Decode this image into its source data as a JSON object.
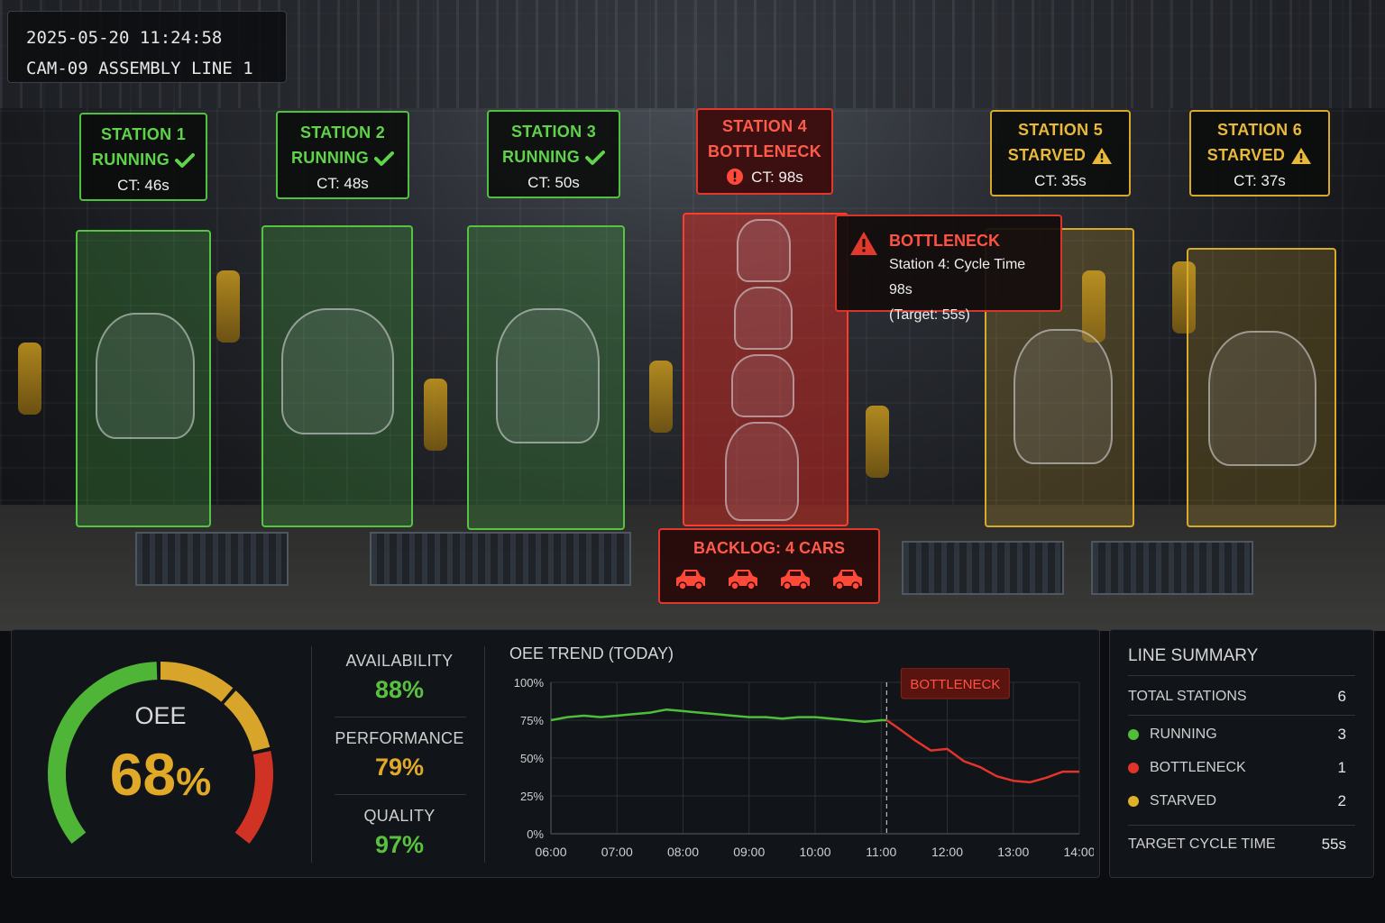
{
  "camera": {
    "timestamp": "2025-05-20  11:24:58",
    "label": "CAM-09  ASSEMBLY LINE 1"
  },
  "stations": [
    {
      "name": "STATION 1",
      "state": "RUNNING",
      "ct": "CT: 46s",
      "status": "running"
    },
    {
      "name": "STATION 2",
      "state": "RUNNING",
      "ct": "CT: 48s",
      "status": "running"
    },
    {
      "name": "STATION 3",
      "state": "RUNNING",
      "ct": "CT: 50s",
      "status": "running"
    },
    {
      "name": "STATION 4",
      "state": "BOTTLENECK",
      "ct": "CT: 98s",
      "status": "bottleneck"
    },
    {
      "name": "STATION 5",
      "state": "STARVED",
      "ct": "CT: 35s",
      "status": "starved"
    },
    {
      "name": "STATION 6",
      "state": "STARVED",
      "ct": "CT: 37s",
      "status": "starved"
    }
  ],
  "alert": {
    "title": "BOTTLENECK",
    "line1": "Station 4: Cycle Time 98s",
    "line2": "(Target: 55s)"
  },
  "backlog": {
    "label": "BACKLOG: 4 CARS",
    "count": 4
  },
  "oee": {
    "label": "OEE",
    "value": "68",
    "unit": "%",
    "gauge_fraction": 0.68
  },
  "metrics": [
    {
      "label": "AVAILABILITY",
      "value": "88%",
      "color": "#58c23f"
    },
    {
      "label": "PERFORMANCE",
      "value": "79%",
      "color": "#e0a928"
    },
    {
      "label": "QUALITY",
      "value": "97%",
      "color": "#58c23f"
    }
  ],
  "chart_data": {
    "type": "line",
    "title": "OEE TREND (TODAY)",
    "xlabel": "",
    "ylabel": "",
    "x_ticks": [
      "06:00",
      "07:00",
      "08:00",
      "09:00",
      "10:00",
      "11:00",
      "12:00",
      "13:00",
      "14:00"
    ],
    "y_ticks": [
      "0%",
      "25%",
      "50%",
      "75%",
      "100%"
    ],
    "ylim": [
      0,
      100
    ],
    "xlim": [
      "06:00",
      "14:00"
    ],
    "grid": true,
    "annotation": {
      "label": "BOTTLENECK",
      "x": "11:05"
    },
    "series": [
      {
        "color_before": "#4fbf3a",
        "color_after": "#e1342a",
        "x": [
          "06:00",
          "06:15",
          "06:30",
          "06:45",
          "07:00",
          "07:15",
          "07:30",
          "07:45",
          "08:00",
          "08:15",
          "08:30",
          "08:45",
          "09:00",
          "09:15",
          "09:30",
          "09:45",
          "10:00",
          "10:15",
          "10:30",
          "10:45",
          "11:00",
          "11:05",
          "11:15",
          "11:30",
          "11:45",
          "12:00",
          "12:15",
          "12:30",
          "12:45",
          "13:00",
          "13:15",
          "13:30",
          "13:45",
          "14:00"
        ],
        "values": [
          75,
          77,
          78,
          77,
          78,
          79,
          80,
          82,
          81,
          80,
          79,
          78,
          77,
          77,
          76,
          77,
          77,
          76,
          75,
          74,
          75,
          75,
          70,
          62,
          55,
          56,
          48,
          44,
          38,
          35,
          34,
          37,
          41,
          41
        ]
      }
    ]
  },
  "summary": {
    "title": "LINE SUMMARY",
    "rows": [
      {
        "label": "TOTAL STATIONS",
        "value": "6"
      },
      {
        "label": "RUNNING",
        "value": "3",
        "color": "#4fbf3a"
      },
      {
        "label": "BOTTLENECK",
        "value": "1",
        "color": "#e1342a"
      },
      {
        "label": "STARVED",
        "value": "2",
        "color": "#e0b02a"
      },
      {
        "label": "TARGET CYCLE TIME",
        "value": "55s"
      }
    ]
  }
}
